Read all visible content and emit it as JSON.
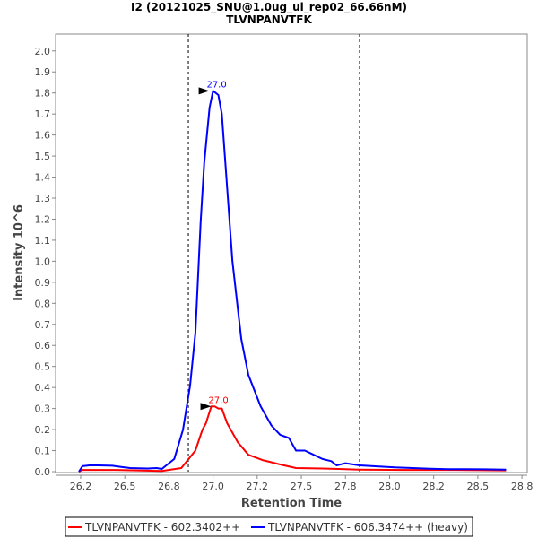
{
  "chart_data": {
    "type": "line",
    "title": "I2 (20121025_SNU@1.0ug_ul_rep02_66.66nM)",
    "subtitle": "TLVNPANVTFK",
    "xlabel": "Retention Time",
    "ylabel": "Intensity 10^6",
    "xlim": [
      26.108,
      28.78
    ],
    "ylim": [
      0,
      2.08
    ],
    "x_ticks": [
      26.25,
      26.5,
      26.75,
      27.0,
      27.25,
      27.5,
      27.75,
      28.0,
      28.25,
      28.5,
      28.75
    ],
    "x_tick_labels": [
      "26.2",
      "26.5",
      "26.8",
      "27.0",
      "27.2",
      "27.5",
      "27.8",
      "28.0",
      "28.2",
      "28.5",
      "28.8"
    ],
    "y_ticks": [
      0.0,
      0.1,
      0.2,
      0.3,
      0.4,
      0.5,
      0.6,
      0.7,
      0.8,
      0.9,
      1.0,
      1.1,
      1.2,
      1.3,
      1.4,
      1.5,
      1.6,
      1.7,
      1.8,
      1.9,
      2.0
    ],
    "y_tick_labels": [
      "0.0",
      "0.1",
      "0.2",
      "0.3",
      "0.4",
      "0.5",
      "0.6",
      "0.7",
      "0.8",
      "0.9",
      "1.0",
      "1.1",
      "1.2",
      "1.3",
      "1.4",
      "1.5",
      "1.6",
      "1.7",
      "1.8",
      "1.9",
      "2.0"
    ],
    "integration_boundaries": [
      26.86,
      27.83
    ],
    "legend_position": "bottom",
    "grid": false,
    "series": [
      {
        "name": "TLVNPANVTFK - 602.3402++",
        "color": "#ff0000",
        "peak_label": "27.0",
        "peak": [
          27.01,
          0.31
        ],
        "x": [
          26.24,
          26.26,
          26.45,
          26.71,
          26.82,
          26.9,
          26.94,
          26.96,
          26.99,
          27.01,
          27.03,
          27.05,
          27.08,
          27.14,
          27.2,
          27.28,
          27.32,
          27.38,
          27.47,
          27.62,
          27.83,
          28.08,
          28.33,
          28.66
        ],
        "y": [
          0.0,
          0.008,
          0.008,
          0.003,
          0.017,
          0.1,
          0.2,
          0.23,
          0.31,
          0.31,
          0.3,
          0.3,
          0.23,
          0.14,
          0.08,
          0.055,
          0.047,
          0.034,
          0.017,
          0.015,
          0.01,
          0.008,
          0.008,
          0.006
        ]
      },
      {
        "name": "TLVNPANVTFK - 606.3474++ (heavy)",
        "color": "#0000ff",
        "peak_label": "27.0",
        "peak": [
          27.0,
          1.81
        ],
        "x": [
          26.24,
          26.26,
          26.3,
          26.35,
          26.43,
          26.48,
          26.53,
          26.63,
          26.68,
          26.71,
          26.78,
          26.83,
          26.87,
          26.9,
          26.93,
          26.95,
          26.98,
          27.0,
          27.03,
          27.05,
          27.11,
          27.16,
          27.2,
          27.27,
          27.33,
          27.38,
          27.43,
          27.47,
          27.52,
          27.57,
          27.62,
          27.67,
          27.7,
          27.75,
          27.83,
          27.93,
          28.03,
          28.13,
          28.23,
          28.33,
          28.43,
          28.54,
          28.66
        ],
        "y": [
          0.0,
          0.026,
          0.03,
          0.03,
          0.028,
          0.022,
          0.017,
          0.015,
          0.017,
          0.013,
          0.06,
          0.2,
          0.41,
          0.66,
          1.19,
          1.47,
          1.73,
          1.81,
          1.79,
          1.7,
          1.0,
          0.63,
          0.46,
          0.31,
          0.22,
          0.175,
          0.16,
          0.1,
          0.1,
          0.08,
          0.06,
          0.05,
          0.03,
          0.04,
          0.03,
          0.025,
          0.02,
          0.017,
          0.014,
          0.012,
          0.012,
          0.011,
          0.01
        ]
      }
    ]
  }
}
